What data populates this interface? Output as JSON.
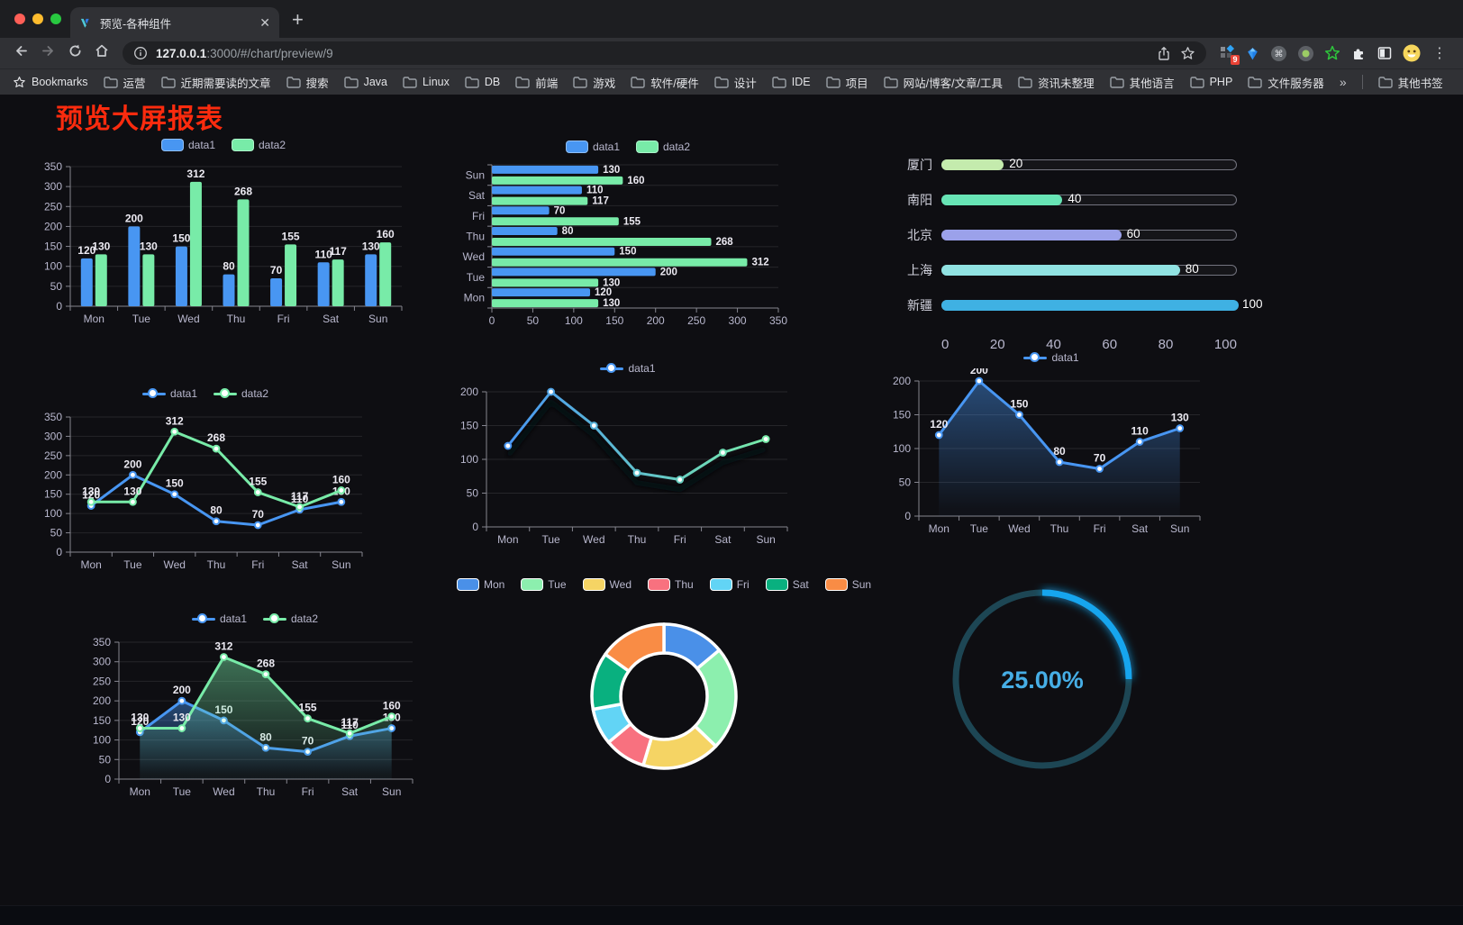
{
  "browser": {
    "tab_title": "预览-各种组件",
    "url_host": "127.0.0.1",
    "url_path": ":3000/#/chart/preview/9",
    "bookmarks_label": "Bookmarks",
    "bookmarks": [
      "运营",
      "近期需要读的文章",
      "搜索",
      "Java",
      "Linux",
      "DB",
      "前端",
      "游戏",
      "软件/硬件",
      "设计",
      "IDE",
      "项目",
      "网站/博客/文章/工具",
      "资讯未整理",
      "其他语言",
      "PHP",
      "文件服务器"
    ],
    "bookmarks_overflow": "»",
    "other_bookmarks": "其他书签",
    "extension_badge": "9"
  },
  "page": {
    "title": "预览大屏报表",
    "title_color": "#fb2b0e",
    "background": "#0e0e12"
  },
  "chart_data": [
    {
      "id": "bar-grouped-vertical",
      "type": "bar",
      "categories": [
        "Mon",
        "Tue",
        "Wed",
        "Thu",
        "Fri",
        "Sat",
        "Sun"
      ],
      "series": [
        {
          "name": "data1",
          "color": "#4896f2",
          "values": [
            120,
            200,
            150,
            80,
            70,
            110,
            130
          ]
        },
        {
          "name": "data2",
          "color": "#78eba8",
          "values": [
            130,
            130,
            312,
            268,
            155,
            117,
            160
          ]
        }
      ],
      "ylim": [
        0,
        350
      ],
      "ytick": 50,
      "value_labels": true,
      "legend_position": "top",
      "grid": true
    },
    {
      "id": "bar-grouped-horizontal",
      "type": "bar-horizontal",
      "categories": [
        "Mon",
        "Tue",
        "Wed",
        "Thu",
        "Fri",
        "Sat",
        "Sun"
      ],
      "series": [
        {
          "name": "data1",
          "color": "#4896f2",
          "values": [
            120,
            200,
            150,
            80,
            70,
            110,
            130
          ]
        },
        {
          "name": "data2",
          "color": "#78eba8",
          "values": [
            130,
            130,
            312,
            268,
            155,
            117,
            160
          ]
        }
      ],
      "xlim": [
        0,
        350
      ],
      "xtick": 50,
      "value_labels": true,
      "legend_position": "top",
      "grid": true
    },
    {
      "id": "progress-list",
      "type": "progress",
      "items": [
        {
          "label": "厦门",
          "value": 20,
          "color": "#c4ebad"
        },
        {
          "label": "南阳",
          "value": 40,
          "color": "#67e4b5"
        },
        {
          "label": "北京",
          "value": 60,
          "color": "#9ba1ea"
        },
        {
          "label": "上海",
          "value": 80,
          "color": "#90e2e2"
        },
        {
          "label": "新疆",
          "value": 100,
          "color": "#3fb1e3"
        }
      ],
      "max": 100,
      "axis_ticks": [
        0,
        20,
        40,
        60,
        80,
        100
      ]
    },
    {
      "id": "line-two-series",
      "type": "line",
      "categories": [
        "Mon",
        "Tue",
        "Wed",
        "Thu",
        "Fri",
        "Sat",
        "Sun"
      ],
      "series": [
        {
          "name": "data1",
          "color": "#4896f2",
          "values": [
            120,
            200,
            150,
            80,
            70,
            110,
            130
          ]
        },
        {
          "name": "data2",
          "color": "#78eba8",
          "values": [
            130,
            130,
            312,
            268,
            155,
            117,
            160
          ]
        }
      ],
      "ylim": [
        0,
        350
      ],
      "ytick": 50,
      "value_labels": true,
      "legend_position": "top",
      "grid": true
    },
    {
      "id": "line-gradient",
      "type": "line",
      "categories": [
        "Mon",
        "Tue",
        "Wed",
        "Thu",
        "Fri",
        "Sat",
        "Sun"
      ],
      "series": [
        {
          "name": "data1",
          "color": "#4896f2",
          "color_end": "#78eba8",
          "values": [
            120,
            200,
            150,
            80,
            70,
            110,
            130
          ]
        }
      ],
      "ylim": [
        0,
        200
      ],
      "ytick": 50,
      "value_labels": false,
      "shadow": true,
      "legend_position": "top",
      "grid": true
    },
    {
      "id": "area-single",
      "type": "area",
      "categories": [
        "Mon",
        "Tue",
        "Wed",
        "Thu",
        "Fri",
        "Sat",
        "Sun"
      ],
      "series": [
        {
          "name": "data1",
          "color": "#4896f2",
          "area": true,
          "values": [
            120,
            200,
            150,
            80,
            70,
            110,
            130
          ]
        }
      ],
      "ylim": [
        0,
        200
      ],
      "ytick": 50,
      "value_labels": true,
      "legend_position": "top",
      "grid": true
    },
    {
      "id": "area-two-series",
      "type": "area",
      "categories": [
        "Mon",
        "Tue",
        "Wed",
        "Thu",
        "Fri",
        "Sat",
        "Sun"
      ],
      "series": [
        {
          "name": "data1",
          "color": "#4896f2",
          "area": true,
          "values": [
            120,
            200,
            150,
            80,
            70,
            110,
            130
          ]
        },
        {
          "name": "data2",
          "color": "#78eba8",
          "area": true,
          "values": [
            130,
            130,
            312,
            268,
            155,
            117,
            160
          ]
        }
      ],
      "ylim": [
        0,
        350
      ],
      "ytick": 50,
      "value_labels": true,
      "legend_position": "top",
      "grid": true
    },
    {
      "id": "donut",
      "type": "pie",
      "labels": [
        "Mon",
        "Tue",
        "Wed",
        "Thu",
        "Fri",
        "Sat",
        "Sun"
      ],
      "values": [
        120,
        200,
        150,
        80,
        70,
        110,
        130
      ],
      "colors": [
        "#4a90e8",
        "#8cefae",
        "#f5d464",
        "#f8717f",
        "#62d4f5",
        "#09b07f",
        "#f98c45"
      ],
      "inner_radius_ratio": 0.6,
      "border_color": "#ffffff",
      "legend_position": "top"
    },
    {
      "id": "gauge",
      "type": "gauge",
      "value": 25,
      "display": "25.00%",
      "color": "#18a5ee",
      "track_color": "#1d4654",
      "text_color": "#46aee6"
    }
  ]
}
